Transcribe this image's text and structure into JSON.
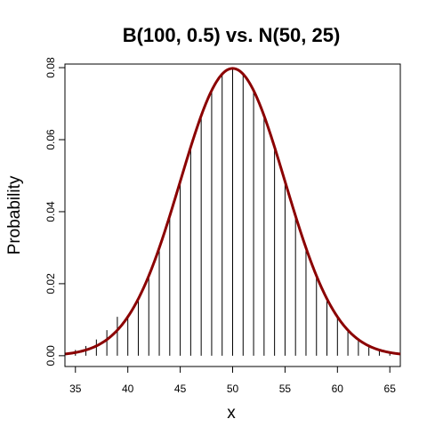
{
  "chart_data": {
    "type": "bar",
    "title": "B(100, 0.5) vs. N(50, 25)",
    "xlabel": "x",
    "ylabel": "Probability",
    "xlim": [
      34,
      66
    ],
    "ylim": [
      -0.003,
      0.081
    ],
    "xticks": [
      35,
      40,
      45,
      50,
      55,
      60,
      65
    ],
    "yticks": [
      "0.00",
      "0.02",
      "0.04",
      "0.06",
      "0.08"
    ],
    "grid": false,
    "series": [
      {
        "values_kind": "binomial pmf spikes",
        "x": [
          34,
          35,
          36,
          37,
          38,
          39,
          40,
          41,
          42,
          43,
          44,
          45,
          46,
          47,
          48,
          49,
          50,
          51,
          52,
          53,
          54,
          55,
          56,
          57,
          58,
          59,
          60,
          61,
          62,
          63,
          64,
          65,
          66
        ],
        "values": [
          0.0009,
          0.0016,
          0.0027,
          0.0045,
          0.0071,
          0.0108,
          0.0108,
          0.0159,
          0.0223,
          0.0301,
          0.039,
          0.0485,
          0.058,
          0.0666,
          0.0735,
          0.078,
          0.0796,
          0.078,
          0.0735,
          0.0666,
          0.058,
          0.0485,
          0.039,
          0.0301,
          0.0223,
          0.0159,
          0.0108,
          0.0071,
          0.0045,
          0.0027,
          0.0016,
          0.0009,
          0.0005
        ],
        "color": "#000000"
      },
      {
        "values_kind": "normal density curve",
        "mean": 50,
        "variance": 25,
        "color": "#8b0000"
      }
    ]
  }
}
